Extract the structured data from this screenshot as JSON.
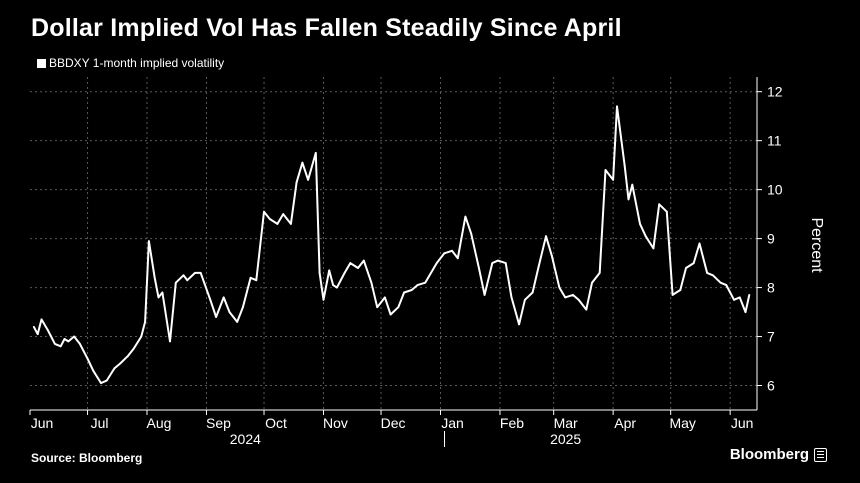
{
  "header": {
    "title": "Dollar Implied Vol Has Fallen Steadily Since April"
  },
  "footer": {
    "source": "Source: Bloomberg",
    "brand": "Bloomberg"
  },
  "colors": {
    "background": "#000000",
    "line": "#ffffff",
    "grid": "#5a5a5a"
  },
  "chart_data": {
    "type": "line",
    "title": "Dollar Implied Vol Has Fallen Steadily Since April",
    "ylabel": "Percent",
    "ylim": [
      5.5,
      12.3
    ],
    "yticks": [
      6,
      7,
      8,
      9,
      10,
      11,
      12
    ],
    "grid": true,
    "legend": "top-left",
    "x_range": [
      "2024-06-01",
      "2025-06-15"
    ],
    "x_months": [
      {
        "label": "Jun",
        "date": "2024-06-01"
      },
      {
        "label": "Jul",
        "date": "2024-07-01"
      },
      {
        "label": "Aug",
        "date": "2024-08-01"
      },
      {
        "label": "Sep",
        "date": "2024-09-01"
      },
      {
        "label": "Oct",
        "date": "2024-10-01"
      },
      {
        "label": "Nov",
        "date": "2024-11-01"
      },
      {
        "label": "Dec",
        "date": "2024-12-01"
      },
      {
        "label": "Jan",
        "date": "2025-01-01"
      },
      {
        "label": "Feb",
        "date": "2025-02-01"
      },
      {
        "label": "Mar",
        "date": "2025-03-01"
      },
      {
        "label": "Apr",
        "date": "2025-04-01"
      },
      {
        "label": "May",
        "date": "2025-05-01"
      },
      {
        "label": "Jun",
        "date": "2025-06-01"
      }
    ],
    "x_years": [
      {
        "label": "2024",
        "date": "2024-09-15"
      },
      {
        "label": "2025",
        "date": "2025-03-01"
      }
    ],
    "year_divider": "2025-01-01",
    "series": [
      {
        "name": "BBDXY 1-month implied volatility",
        "x": [
          "2024-06-03",
          "2024-06-05",
          "2024-06-07",
          "2024-06-10",
          "2024-06-12",
          "2024-06-14",
          "2024-06-17",
          "2024-06-19",
          "2024-06-21",
          "2024-06-24",
          "2024-06-27",
          "2024-07-01",
          "2024-07-04",
          "2024-07-08",
          "2024-07-11",
          "2024-07-15",
          "2024-07-18",
          "2024-07-22",
          "2024-07-25",
          "2024-07-29",
          "2024-07-31",
          "2024-08-02",
          "2024-08-05",
          "2024-08-07",
          "2024-08-09",
          "2024-08-13",
          "2024-08-16",
          "2024-08-20",
          "2024-08-22",
          "2024-08-26",
          "2024-08-29",
          "2024-09-03",
          "2024-09-06",
          "2024-09-10",
          "2024-09-13",
          "2024-09-17",
          "2024-09-20",
          "2024-09-24",
          "2024-09-27",
          "2024-10-01",
          "2024-10-04",
          "2024-10-08",
          "2024-10-11",
          "2024-10-15",
          "2024-10-18",
          "2024-10-21",
          "2024-10-24",
          "2024-10-28",
          "2024-10-30",
          "2024-11-01",
          "2024-11-04",
          "2024-11-06",
          "2024-11-08",
          "2024-11-12",
          "2024-11-15",
          "2024-11-19",
          "2024-11-22",
          "2024-11-26",
          "2024-11-29",
          "2024-12-03",
          "2024-12-06",
          "2024-12-10",
          "2024-12-13",
          "2024-12-17",
          "2024-12-20",
          "2024-12-24",
          "2024-12-30",
          "2025-01-03",
          "2025-01-07",
          "2025-01-10",
          "2025-01-14",
          "2025-01-17",
          "2025-01-21",
          "2025-01-24",
          "2025-01-28",
          "2025-01-31",
          "2025-02-04",
          "2025-02-07",
          "2025-02-11",
          "2025-02-14",
          "2025-02-18",
          "2025-02-21",
          "2025-02-25",
          "2025-02-28",
          "2025-03-04",
          "2025-03-07",
          "2025-03-11",
          "2025-03-14",
          "2025-03-18",
          "2025-03-21",
          "2025-03-25",
          "2025-03-28",
          "2025-04-01",
          "2025-04-03",
          "2025-04-07",
          "2025-04-09",
          "2025-04-11",
          "2025-04-15",
          "2025-04-18",
          "2025-04-22",
          "2025-04-25",
          "2025-04-29",
          "2025-05-02",
          "2025-05-06",
          "2025-05-09",
          "2025-05-13",
          "2025-05-16",
          "2025-05-20",
          "2025-05-23",
          "2025-05-27",
          "2025-05-30",
          "2025-06-03",
          "2025-06-06",
          "2025-06-09",
          "2025-06-11"
        ],
        "values": [
          7.2,
          7.05,
          7.35,
          7.15,
          7.0,
          6.85,
          6.8,
          6.95,
          6.9,
          7.0,
          6.85,
          6.55,
          6.3,
          6.05,
          6.1,
          6.35,
          6.45,
          6.6,
          6.75,
          7.0,
          7.3,
          8.95,
          8.2,
          7.8,
          7.9,
          6.9,
          8.1,
          8.25,
          8.15,
          8.3,
          8.3,
          7.75,
          7.4,
          7.8,
          7.5,
          7.3,
          7.6,
          8.2,
          8.15,
          9.55,
          9.4,
          9.3,
          9.5,
          9.3,
          10.15,
          10.55,
          10.2,
          10.75,
          8.3,
          7.75,
          8.35,
          8.05,
          8.0,
          8.3,
          8.5,
          8.4,
          8.55,
          8.1,
          7.6,
          7.8,
          7.45,
          7.6,
          7.9,
          7.95,
          8.05,
          8.1,
          8.5,
          8.7,
          8.75,
          8.6,
          9.45,
          9.1,
          8.4,
          7.85,
          8.5,
          8.55,
          8.5,
          7.8,
          7.25,
          7.75,
          7.9,
          8.4,
          9.05,
          8.65,
          8.0,
          7.8,
          7.85,
          7.75,
          7.55,
          8.1,
          8.3,
          10.4,
          10.2,
          11.7,
          10.5,
          9.8,
          10.1,
          9.3,
          9.05,
          8.8,
          9.7,
          9.55,
          7.85,
          7.95,
          8.4,
          8.5,
          8.9,
          8.3,
          8.25,
          8.1,
          8.05,
          7.75,
          7.8,
          7.5,
          7.85
        ]
      }
    ]
  }
}
